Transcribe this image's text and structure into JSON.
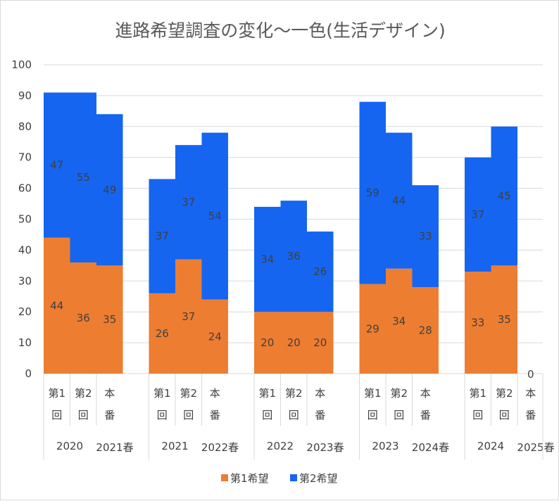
{
  "chart_data": {
    "type": "bar",
    "stacked": true,
    "gap_between_bars": false,
    "title": "進路希望調査の変化〜一色(生活デザイン)",
    "ylim": [
      0,
      100
    ],
    "yticks": [
      0,
      10,
      20,
      30,
      40,
      50,
      60,
      70,
      80,
      90,
      100
    ],
    "grid": true,
    "legend_position": "bottom",
    "colors": {
      "first": "#ED7D31",
      "second": "#1565F0",
      "grid": "#d9d9d9",
      "text": "#404040"
    },
    "groups": [
      {
        "year": "2020",
        "spring": "2021春",
        "bars": [
          {
            "label": [
              "第1",
              "回"
            ],
            "first": 44,
            "second": 47
          },
          {
            "label": [
              "第2",
              "回"
            ],
            "first": 36,
            "second": 55
          },
          {
            "label": [
              "本",
              "番"
            ],
            "first": 35,
            "second": 49
          }
        ]
      },
      {
        "year": "2021",
        "spring": "2022春",
        "bars": [
          {
            "label": [
              "第1",
              "回"
            ],
            "first": 26,
            "second": 37
          },
          {
            "label": [
              "第2",
              "回"
            ],
            "first": 37,
            "second": 37
          },
          {
            "label": [
              "本",
              "番"
            ],
            "first": 24,
            "second": 54
          }
        ]
      },
      {
        "year": "2022",
        "spring": "2023春",
        "bars": [
          {
            "label": [
              "第1",
              "回"
            ],
            "first": 20,
            "second": 34
          },
          {
            "label": [
              "第2",
              "回"
            ],
            "first": 20,
            "second": 36
          },
          {
            "label": [
              "本",
              "番"
            ],
            "first": 20,
            "second": 26
          }
        ]
      },
      {
        "year": "2023",
        "spring": "2024春",
        "bars": [
          {
            "label": [
              "第1",
              "回"
            ],
            "first": 29,
            "second": 59
          },
          {
            "label": [
              "第2",
              "回"
            ],
            "first": 34,
            "second": 44
          },
          {
            "label": [
              "本",
              "番"
            ],
            "first": 28,
            "second": 33
          }
        ]
      },
      {
        "year": "2024",
        "spring": "2025春",
        "bars": [
          {
            "label": [
              "第1",
              "回"
            ],
            "first": 33,
            "second": 37
          },
          {
            "label": [
              "第2",
              "回"
            ],
            "first": 35,
            "second": 45
          },
          {
            "label": [
              "本",
              "番"
            ],
            "first": 0,
            "second": 0
          }
        ]
      }
    ],
    "series": [
      {
        "key": "first",
        "name": "第1希望"
      },
      {
        "key": "second",
        "name": "第2希望"
      }
    ]
  }
}
